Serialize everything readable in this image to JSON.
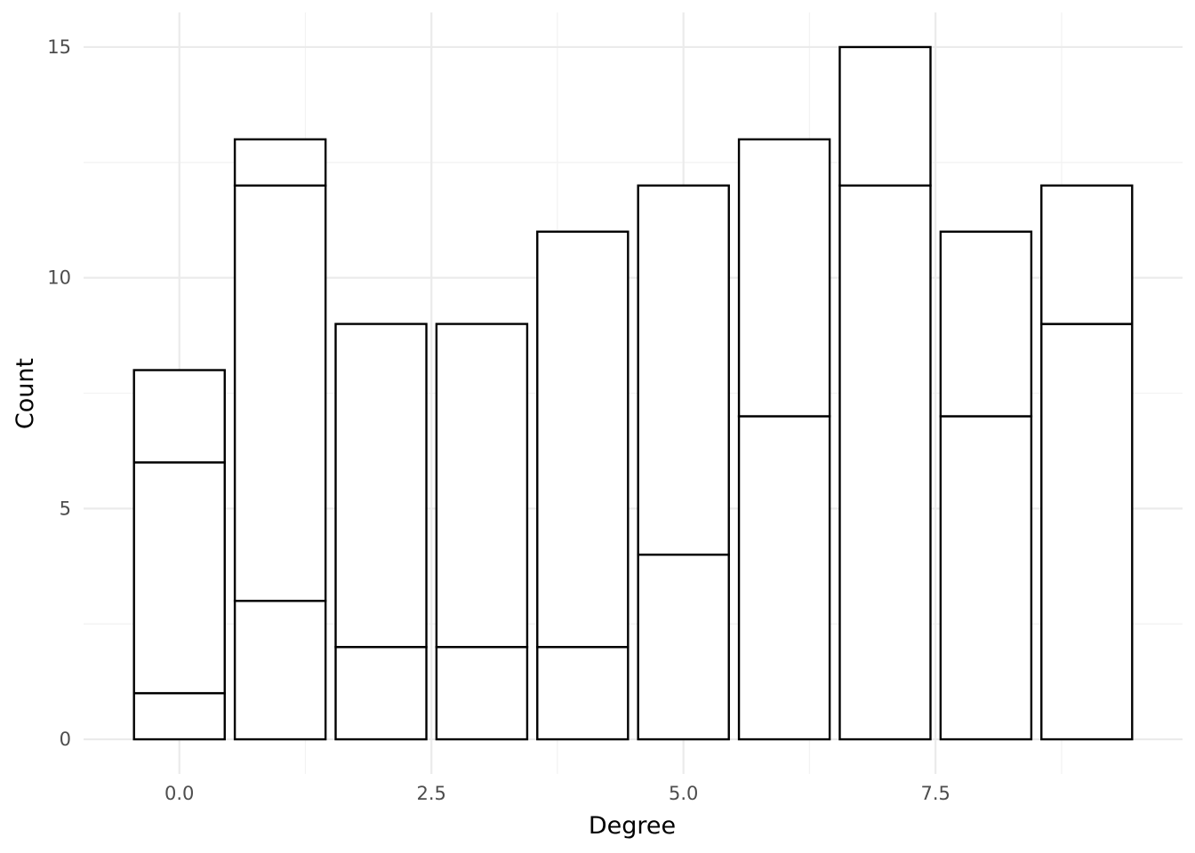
{
  "chart_data": {
    "type": "bar",
    "stacked": true,
    "title": "",
    "xlabel": "Degree",
    "ylabel": "Count",
    "xlim": [
      -0.95,
      9.95
    ],
    "ylim": [
      -0.75,
      15.75
    ],
    "x_ticks": [
      0.0,
      2.5,
      5.0,
      7.5
    ],
    "x_tick_labels": [
      "0.0",
      "2.5",
      "5.0",
      "7.5"
    ],
    "y_ticks": [
      0,
      5,
      10,
      15
    ],
    "y_tick_labels": [
      "0",
      "5",
      "10",
      "15"
    ],
    "grid": true,
    "legend": "none",
    "bar_width": 0.9,
    "bar_fill": "#ffffff",
    "bar_outline": "#000000",
    "gridline_color": "#ebebeb",
    "bars": [
      {
        "x": 0,
        "segments": [
          1,
          5,
          2
        ]
      },
      {
        "x": 1,
        "segments": [
          3,
          9,
          1
        ]
      },
      {
        "x": 2,
        "segments": [
          2,
          7
        ]
      },
      {
        "x": 3,
        "segments": [
          2,
          7
        ]
      },
      {
        "x": 4,
        "segments": [
          2,
          9
        ]
      },
      {
        "x": 5,
        "segments": [
          4,
          8
        ]
      },
      {
        "x": 6,
        "segments": [
          7,
          6
        ]
      },
      {
        "x": 7,
        "segments": [
          12,
          3
        ]
      },
      {
        "x": 8,
        "segments": [
          7,
          4
        ]
      },
      {
        "x": 9,
        "segments": [
          9,
          3
        ]
      }
    ]
  }
}
